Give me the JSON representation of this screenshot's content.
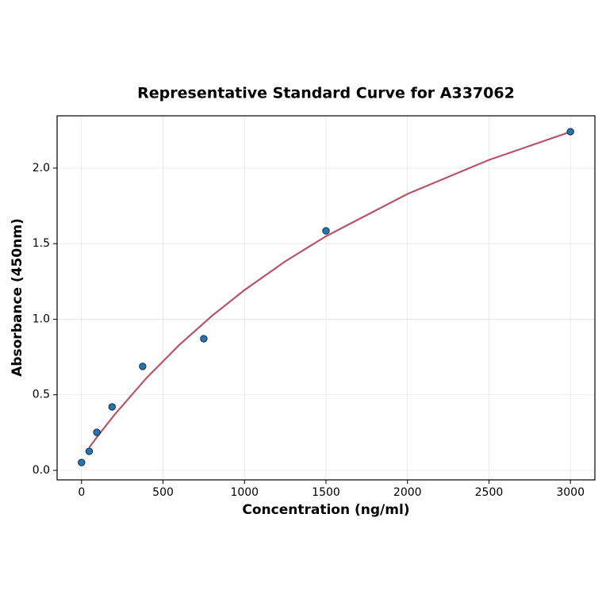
{
  "chart_data": {
    "type": "scatter",
    "title": "Representative Standard Curve for A337062",
    "xlabel": "Concentration (ng/ml)",
    "ylabel": "Absorbance (450nm)",
    "xlim": [
      -150,
      3150
    ],
    "ylim": [
      -0.063,
      2.346
    ],
    "xticks": [
      0,
      500,
      1000,
      1500,
      2000,
      2500,
      3000
    ],
    "yticks": [
      {
        "value": 0,
        "label": "0.0"
      },
      0.5,
      {
        "value": 1,
        "label": "1.0"
      },
      1.5,
      {
        "value": 2,
        "label": "2.0"
      }
    ],
    "grid": true,
    "series": [
      {
        "type": "line",
        "color": "#b5566a",
        "x": [
          47,
          100,
          200,
          400,
          600,
          800,
          1000,
          1250,
          1500,
          2000,
          2500,
          3000
        ],
        "values": [
          0.151,
          0.228,
          0.365,
          0.613,
          0.83,
          1.022,
          1.193,
          1.383,
          1.549,
          1.829,
          2.054,
          2.24
        ]
      },
      {
        "type": "scatter",
        "color": "#1f77b4",
        "x": [
          0,
          46.875,
          93.75,
          187.5,
          375,
          750,
          1500,
          3000
        ],
        "values": [
          0.052,
          0.126,
          0.252,
          0.42,
          0.688,
          0.871,
          1.585,
          2.241
        ]
      }
    ]
  }
}
